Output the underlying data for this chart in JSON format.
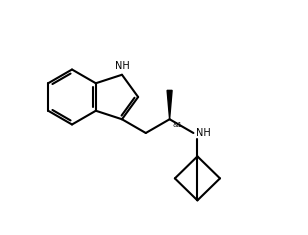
{
  "background_color": "#ffffff",
  "line_color": "#000000",
  "line_width": 1.5,
  "figsize": [
    3.08,
    2.35
  ],
  "dpi": 100,
  "xlim": [
    0.0,
    3.08
  ],
  "ylim": [
    0.0,
    2.35
  ]
}
